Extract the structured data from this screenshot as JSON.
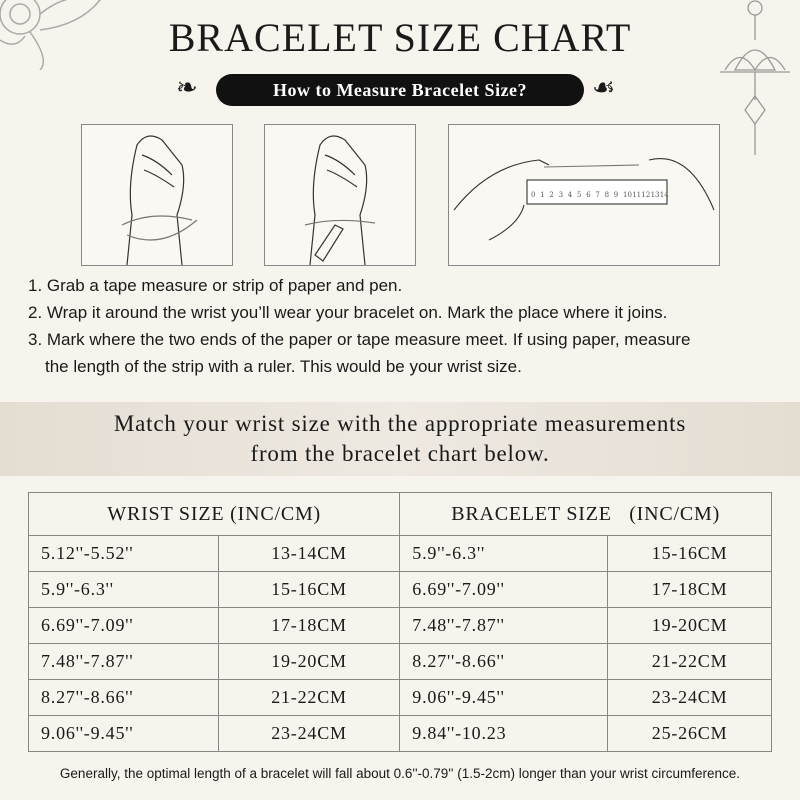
{
  "title": "BRACELET SIZE CHART",
  "subtitle": "How to Measure Bracelet Size?",
  "ruler_numbers": [
    "0",
    "1",
    "2",
    "3",
    "4",
    "5",
    "6",
    "7",
    "8",
    "9",
    "10",
    "11",
    "12",
    "13",
    "14"
  ],
  "steps": [
    "1. Grab a tape measure or strip of paper and pen.",
    "2. Wrap it around the wrist you’ll wear your bracelet on. Mark the place where it joins.",
    "3. Mark where the two ends of the paper or tape measure meet. If using paper, measure",
    "the length of the strip with a ruler. This would be your wrist size."
  ],
  "match_text": [
    "Match your wrist size with the appropriate measurements",
    "from the bracelet chart below."
  ],
  "table": {
    "headers": [
      "WRIST SIZE (INC/CM)",
      "BRACELET SIZE   (INC/CM)"
    ],
    "rows": [
      [
        "5.12''-5.52''",
        "13-14CM",
        "5.9''-6.3''",
        "15-16CM"
      ],
      [
        "5.9''-6.3''",
        "15-16CM",
        "6.69''-7.09''",
        "17-18CM"
      ],
      [
        "6.69''-7.09''",
        "17-18CM",
        "7.48''-7.87''",
        "19-20CM"
      ],
      [
        "7.48''-7.87''",
        "19-20CM",
        "8.27''-8.66''",
        "21-22CM"
      ],
      [
        "8.27''-8.66''",
        "21-22CM",
        "9.06''-9.45''",
        "23-24CM"
      ],
      [
        "9.06''-9.45''",
        "23-24CM",
        "9.84''-10.23",
        "25-26CM"
      ]
    ]
  },
  "note": "Generally, the optimal length of a bracelet will fall about 0.6''-0.79'' (1.5-2cm) longer than your wrist circumference.",
  "colors": {
    "background": "#f7f4ee",
    "pill": "#111111",
    "band": "#e4ddd2"
  }
}
